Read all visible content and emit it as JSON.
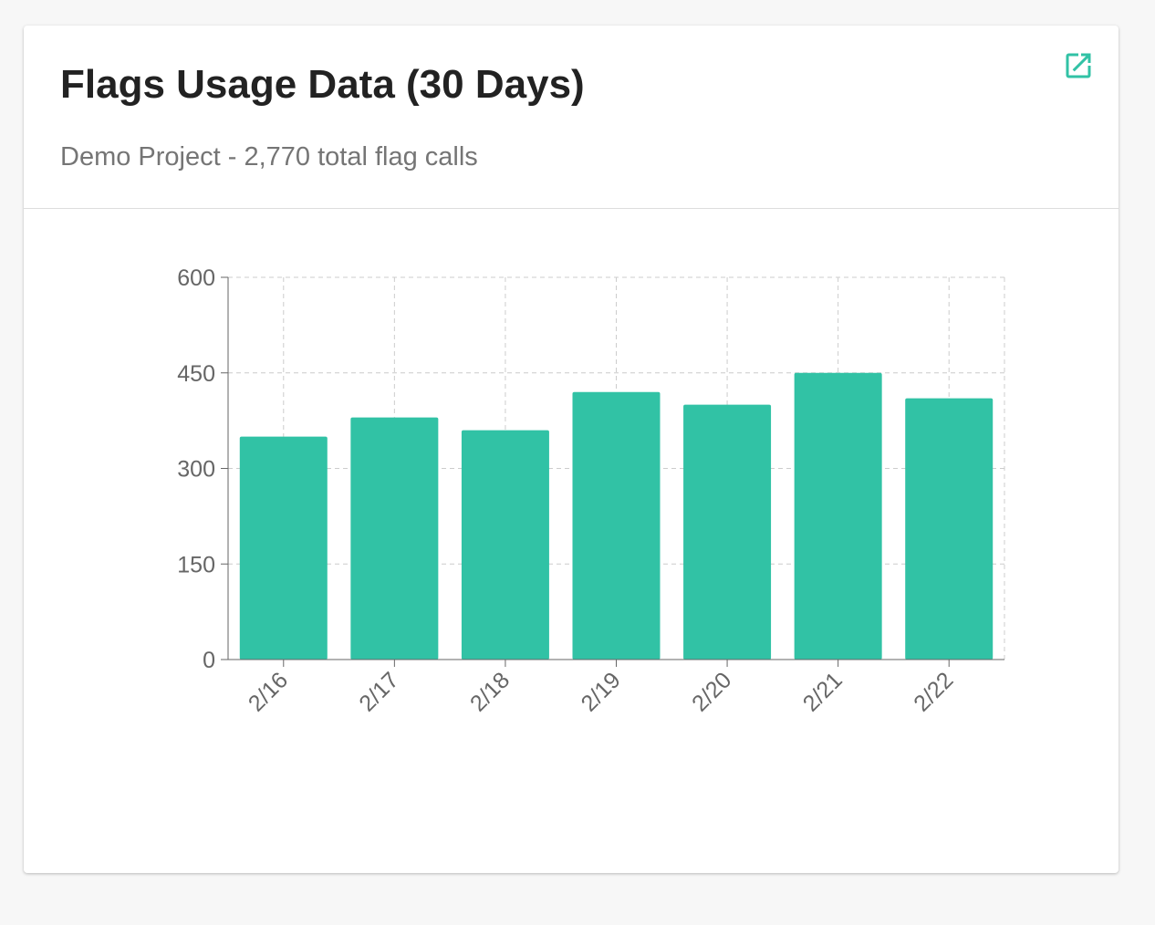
{
  "card": {
    "title": "Flags Usage Data (30 Days)",
    "subtitle": "Demo Project - 2,770 total flag calls",
    "open_icon": "open-in-new-icon"
  },
  "colors": {
    "accent": "#31c2a5",
    "grid": "#cccccc"
  },
  "chart_data": {
    "type": "bar",
    "categories": [
      "2/16",
      "2/17",
      "2/18",
      "2/19",
      "2/20",
      "2/21",
      "2/22"
    ],
    "values": [
      350,
      380,
      360,
      420,
      400,
      450,
      410
    ],
    "ylim": [
      0,
      600
    ],
    "yticks": [
      0,
      150,
      300,
      450,
      600
    ],
    "grid": true,
    "xlabel": "",
    "ylabel": ""
  }
}
